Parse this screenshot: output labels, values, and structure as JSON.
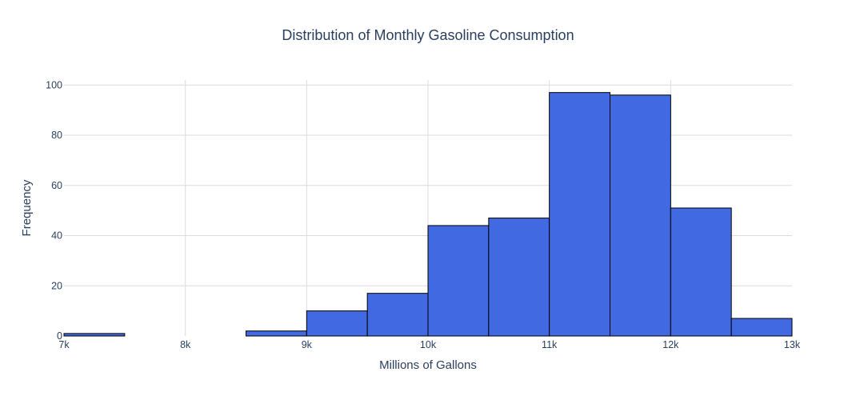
{
  "chart_data": {
    "type": "bar",
    "title": "Distribution of Monthly Gasoline Consumption",
    "xlabel": "Millions of Gallons",
    "ylabel": "Frequency",
    "xlim": [
      7000,
      13000
    ],
    "ylim": [
      0,
      102
    ],
    "bin_width": 500,
    "bins": [
      {
        "start": 7000,
        "end": 7500,
        "count": 1
      },
      {
        "start": 7500,
        "end": 8000,
        "count": 0
      },
      {
        "start": 8000,
        "end": 8500,
        "count": 0
      },
      {
        "start": 8500,
        "end": 9000,
        "count": 2
      },
      {
        "start": 9000,
        "end": 9500,
        "count": 10
      },
      {
        "start": 9500,
        "end": 10000,
        "count": 17
      },
      {
        "start": 10000,
        "end": 10500,
        "count": 44
      },
      {
        "start": 10500,
        "end": 11000,
        "count": 47
      },
      {
        "start": 11000,
        "end": 11500,
        "count": 97
      },
      {
        "start": 11500,
        "end": 12000,
        "count": 96
      },
      {
        "start": 12000,
        "end": 12500,
        "count": 51
      },
      {
        "start": 12500,
        "end": 13000,
        "count": 7
      }
    ],
    "x_ticks": [
      {
        "value": 7000,
        "label": "7k"
      },
      {
        "value": 8000,
        "label": "8k"
      },
      {
        "value": 9000,
        "label": "9k"
      },
      {
        "value": 10000,
        "label": "10k"
      },
      {
        "value": 11000,
        "label": "11k"
      },
      {
        "value": 12000,
        "label": "12k"
      },
      {
        "value": 13000,
        "label": "13k"
      }
    ],
    "y_ticks": [
      {
        "value": 0,
        "label": "0"
      },
      {
        "value": 20,
        "label": "20"
      },
      {
        "value": 40,
        "label": "40"
      },
      {
        "value": 60,
        "label": "60"
      },
      {
        "value": 80,
        "label": "80"
      },
      {
        "value": 100,
        "label": "100"
      }
    ],
    "grid": true,
    "colors": {
      "bar_fill": "#4169e1",
      "bar_outline": "#000000",
      "grid": "#dcdcdc",
      "text": "#2a3f5f"
    }
  }
}
